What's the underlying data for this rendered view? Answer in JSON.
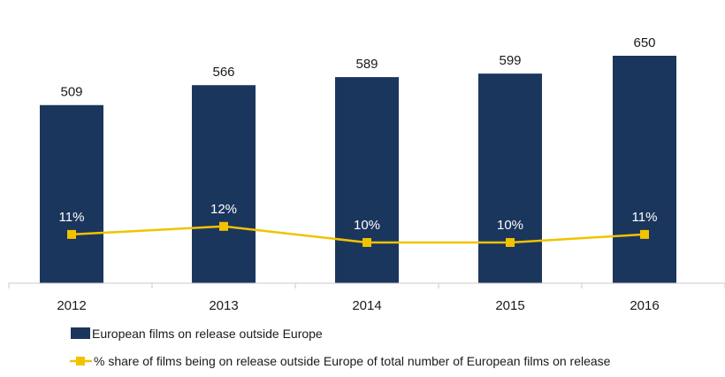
{
  "chart_data": {
    "type": "bar",
    "categories": [
      "2012",
      "2013",
      "2014",
      "2015",
      "2016"
    ],
    "series": [
      {
        "name": "European films on release outside Europe",
        "type": "bar",
        "axis": "left",
        "values": [
          509,
          566,
          589,
          599,
          650
        ],
        "labels": [
          "509",
          "566",
          "589",
          "599",
          "650"
        ],
        "color": "#1b365d"
      },
      {
        "name": "% share of films being on release outside Europe of total number of European films on release",
        "type": "line",
        "axis": "right",
        "values": [
          11,
          12,
          10,
          10,
          11
        ],
        "labels": [
          "11%",
          "12%",
          "10%",
          "10%",
          "11%"
        ],
        "color": "#f2c200"
      }
    ],
    "ylim": [
      0,
      650
    ],
    "y2lim": [
      0,
      20
    ],
    "grid": false,
    "legend_position": "bottom-left"
  }
}
